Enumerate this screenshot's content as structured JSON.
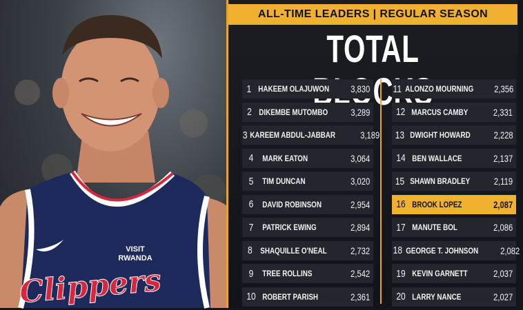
{
  "header": {
    "banner": "ALL-TIME LEADERS | REGULAR SEASON",
    "title": "TOTAL BLOCKS"
  },
  "photo": {
    "jersey_text": "Clippers",
    "patch_line1": "VISIT",
    "patch_line2": "RWANDA"
  },
  "leaders_left": [
    {
      "rank": "1",
      "name": "HAKEEM OLAJUWON",
      "value": "3,830"
    },
    {
      "rank": "2",
      "name": "DIKEMBE MUTOMBO",
      "value": "3,289"
    },
    {
      "rank": "3",
      "name": "KAREEM ABDUL-JABBAR",
      "value": "3,189"
    },
    {
      "rank": "4",
      "name": "MARK EATON",
      "value": "3,064"
    },
    {
      "rank": "5",
      "name": "TIM DUNCAN",
      "value": "3,020"
    },
    {
      "rank": "6",
      "name": "DAVID ROBINSON",
      "value": "2,954"
    },
    {
      "rank": "7",
      "name": "PATRICK EWING",
      "value": "2,894"
    },
    {
      "rank": "8",
      "name": "SHAQUILLE O'NEAL",
      "value": "2,732"
    },
    {
      "rank": "9",
      "name": "TREE ROLLINS",
      "value": "2,542"
    },
    {
      "rank": "10",
      "name": "ROBERT PARISH",
      "value": "2,361"
    }
  ],
  "leaders_right": [
    {
      "rank": "11",
      "name": "ALONZO MOURNING",
      "value": "2,356"
    },
    {
      "rank": "12",
      "name": "MARCUS CAMBY",
      "value": "2,331"
    },
    {
      "rank": "13",
      "name": "DWIGHT HOWARD",
      "value": "2,228"
    },
    {
      "rank": "14",
      "name": "BEN WALLACE",
      "value": "2,137"
    },
    {
      "rank": "15",
      "name": "SHAWN BRADLEY",
      "value": "2,119"
    },
    {
      "rank": "16",
      "name": "BROOK LOPEZ",
      "value": "2,087"
    },
    {
      "rank": "17",
      "name": "MANUTE BOL",
      "value": "2,086"
    },
    {
      "rank": "18",
      "name": "GEORGE T. JOHNSON",
      "value": "2,082"
    },
    {
      "rank": "19",
      "name": "KEVIN GARNETT",
      "value": "2,037"
    },
    {
      "rank": "20",
      "name": "LARRY NANCE",
      "value": "2,027"
    }
  ],
  "colors": {
    "accent": "#f0b030",
    "row_bg": "#23262d",
    "jersey": "#1f2a5c",
    "jersey_trim": "#d7263d"
  }
}
